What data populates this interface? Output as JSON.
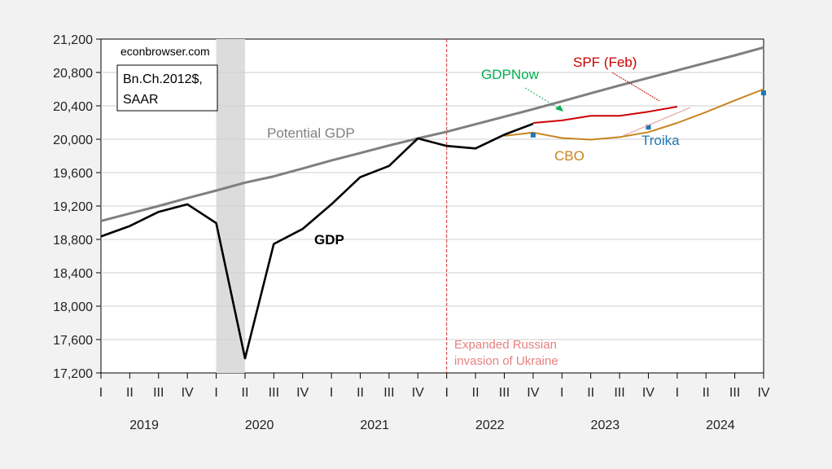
{
  "chart_data": {
    "type": "line",
    "source_text": "econbrowser.com",
    "units_lines": [
      "Bn.Ch.2012$,",
      "SAAR"
    ],
    "ylim": [
      17200,
      21200
    ],
    "yticks": [
      17200,
      17600,
      18000,
      18400,
      18800,
      19200,
      19600,
      20000,
      20400,
      20800,
      21200
    ],
    "ytick_labels": [
      "17,200",
      "17,600",
      "18,000",
      "18,400",
      "18,800",
      "19,200",
      "19,600",
      "20,000",
      "20,400",
      "20,800",
      "21,200"
    ],
    "quarter_labels": [
      "I",
      "II",
      "III",
      "IV",
      "I",
      "II",
      "III",
      "IV",
      "I",
      "II",
      "III",
      "IV",
      "I",
      "II",
      "III",
      "IV",
      "I",
      "II",
      "III",
      "IV",
      "I",
      "II",
      "III",
      "IV"
    ],
    "years": [
      "2019",
      "2020",
      "2021",
      "2022",
      "2023",
      "2024"
    ],
    "grid": true,
    "recession_shading": {
      "start": "2020Q1",
      "end": "2020Q2",
      "color": "#dcdcdc"
    },
    "event_line": {
      "at": "2022Q1",
      "label_lines": [
        "Expanded Russian",
        "invasion of Ukraine"
      ],
      "color": "#d23030",
      "label_color": "#e88080"
    },
    "series": [
      {
        "name": "Potential GDP",
        "color": "#7f7f7f",
        "x": [
          "2019Q1",
          "2019Q2",
          "2019Q3",
          "2019Q4",
          "2020Q1",
          "2020Q2",
          "2020Q3",
          "2020Q4",
          "2021Q1",
          "2021Q2",
          "2021Q3",
          "2021Q4",
          "2022Q1",
          "2022Q2",
          "2022Q3",
          "2022Q4",
          "2023Q1",
          "2023Q2",
          "2023Q3",
          "2023Q4",
          "2024Q1",
          "2024Q2",
          "2024Q3",
          "2024Q4"
        ],
        "values": [
          19020,
          19110,
          19200,
          19295,
          19385,
          19480,
          19555,
          19650,
          19745,
          19835,
          19925,
          20010,
          20090,
          20180,
          20270,
          20360,
          20455,
          20550,
          20645,
          20735,
          20825,
          20915,
          21005,
          21100
        ]
      },
      {
        "name": "GDP",
        "color": "#000000",
        "x": [
          "2019Q1",
          "2019Q2",
          "2019Q3",
          "2019Q4",
          "2020Q1",
          "2020Q2",
          "2020Q3",
          "2020Q4",
          "2021Q1",
          "2021Q2",
          "2021Q3",
          "2021Q4",
          "2022Q1",
          "2022Q2",
          "2022Q3",
          "2022Q4"
        ],
        "values": [
          18835,
          18960,
          19130,
          19220,
          18995,
          17375,
          18745,
          18925,
          19220,
          19545,
          19680,
          20010,
          19920,
          19890,
          20055,
          20185
        ]
      },
      {
        "name": "SPF (Feb)",
        "color": "#cc0000",
        "x": [
          "2022Q4",
          "2023Q1",
          "2023Q2",
          "2023Q3",
          "2023Q4",
          "2024Q1"
        ],
        "values": [
          20195,
          20225,
          20280,
          20280,
          20330,
          20390
        ]
      },
      {
        "name": "CBO",
        "color": "#c8841e",
        "x": [
          "2022Q3",
          "2022Q4",
          "2023Q1",
          "2023Q2",
          "2023Q3",
          "2023Q4",
          "2024Q1",
          "2024Q2",
          "2024Q3",
          "2024Q4"
        ],
        "values": [
          20040,
          20080,
          20015,
          19995,
          20025,
          20085,
          20195,
          20325,
          20465,
          20600
        ]
      },
      {
        "name": "Troika",
        "color": "#1f77b4",
        "markers_only": true,
        "x": [
          "2022Q4",
          "2023Q4",
          "2024Q4"
        ],
        "values": [
          20050,
          20145,
          20555
        ]
      },
      {
        "name": "GDPNow",
        "color": "#00b050",
        "markers_only": true,
        "x": [
          "2023Q1"
        ],
        "values": [
          20235
        ]
      }
    ],
    "annotations": [
      {
        "text": "Potential GDP",
        "color": "#808080"
      },
      {
        "text": "GDP",
        "color": "#000000",
        "bold": true
      },
      {
        "text": "SPF (Feb)",
        "color": "#cc0000"
      },
      {
        "text": "GDPNow",
        "color": "#00b050"
      },
      {
        "text": "CBO",
        "color": "#c8841e"
      },
      {
        "text": "Troika",
        "color": "#1f77b4"
      }
    ]
  }
}
